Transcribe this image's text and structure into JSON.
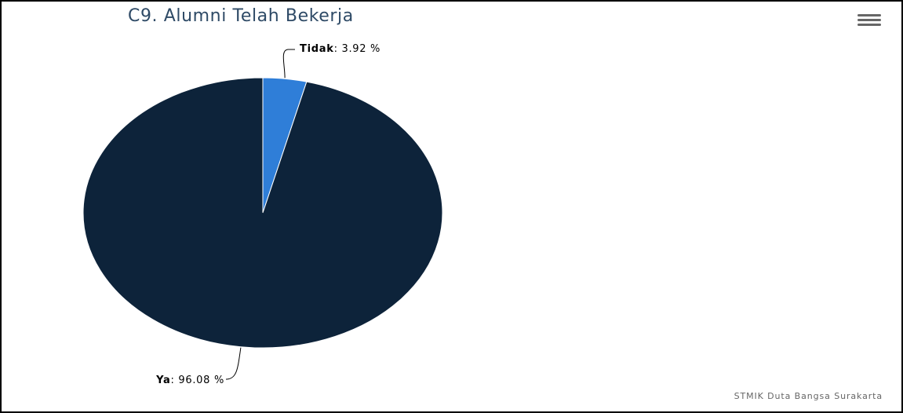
{
  "chart_data": {
    "type": "pie",
    "title": "C9. Alumni Telah Bekerja",
    "slices": [
      {
        "name": "Tidak",
        "value": 3.92,
        "label": "3.92 %",
        "color": "#2f7ed8"
      },
      {
        "name": "Ya",
        "value": 96.08,
        "label": "96.08 %",
        "color": "#0d233a"
      }
    ],
    "start_angle_deg": 0,
    "direction": "clockwise",
    "legend": "none",
    "credits": "STMIK Duta Bangsa Surakarta"
  },
  "menu": {
    "icon": "hamburger-menu-icon",
    "color": "#666666"
  },
  "style": {
    "title_color": "#2e4a66",
    "connector_color": "#000000",
    "label_color": "#000000"
  }
}
